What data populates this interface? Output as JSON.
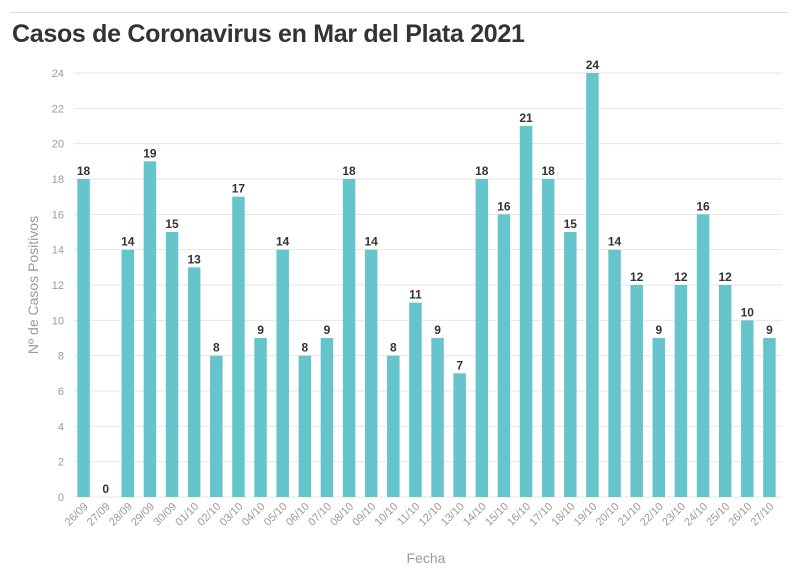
{
  "title": "Casos de Coronavirus en Mar del Plata 2021",
  "colors": {
    "bar": "#66c5cc",
    "grid": "#e6e6e6",
    "title": "#333333",
    "axis_text": "#9a9a9a"
  },
  "chart_data": {
    "type": "bar",
    "title": "Casos de Coronavirus en Mar del Plata 2021",
    "xlabel": "Fecha",
    "ylabel": "Nº de Casos Positivos",
    "ylim": [
      0,
      24
    ],
    "yticks": [
      0,
      2,
      4,
      6,
      8,
      10,
      12,
      14,
      16,
      18,
      20,
      22,
      24
    ],
    "grid": true,
    "categories": [
      "26/09",
      "27/09",
      "28/09",
      "29/09",
      "30/09",
      "01/10",
      "02/10",
      "03/10",
      "04/10",
      "05/10",
      "06/10",
      "07/10",
      "08/10",
      "09/10",
      "10/10",
      "11/10",
      "12/10",
      "13/10",
      "14/10",
      "15/10",
      "16/10",
      "17/10",
      "18/10",
      "19/10",
      "20/10",
      "21/10",
      "22/10",
      "23/10",
      "24/10",
      "25/10",
      "26/10",
      "27/10"
    ],
    "values": [
      18,
      0,
      14,
      19,
      15,
      13,
      8,
      17,
      9,
      14,
      8,
      9,
      18,
      14,
      8,
      11,
      9,
      7,
      18,
      16,
      21,
      18,
      15,
      24,
      14,
      12,
      9,
      12,
      16,
      12,
      10,
      9
    ]
  }
}
